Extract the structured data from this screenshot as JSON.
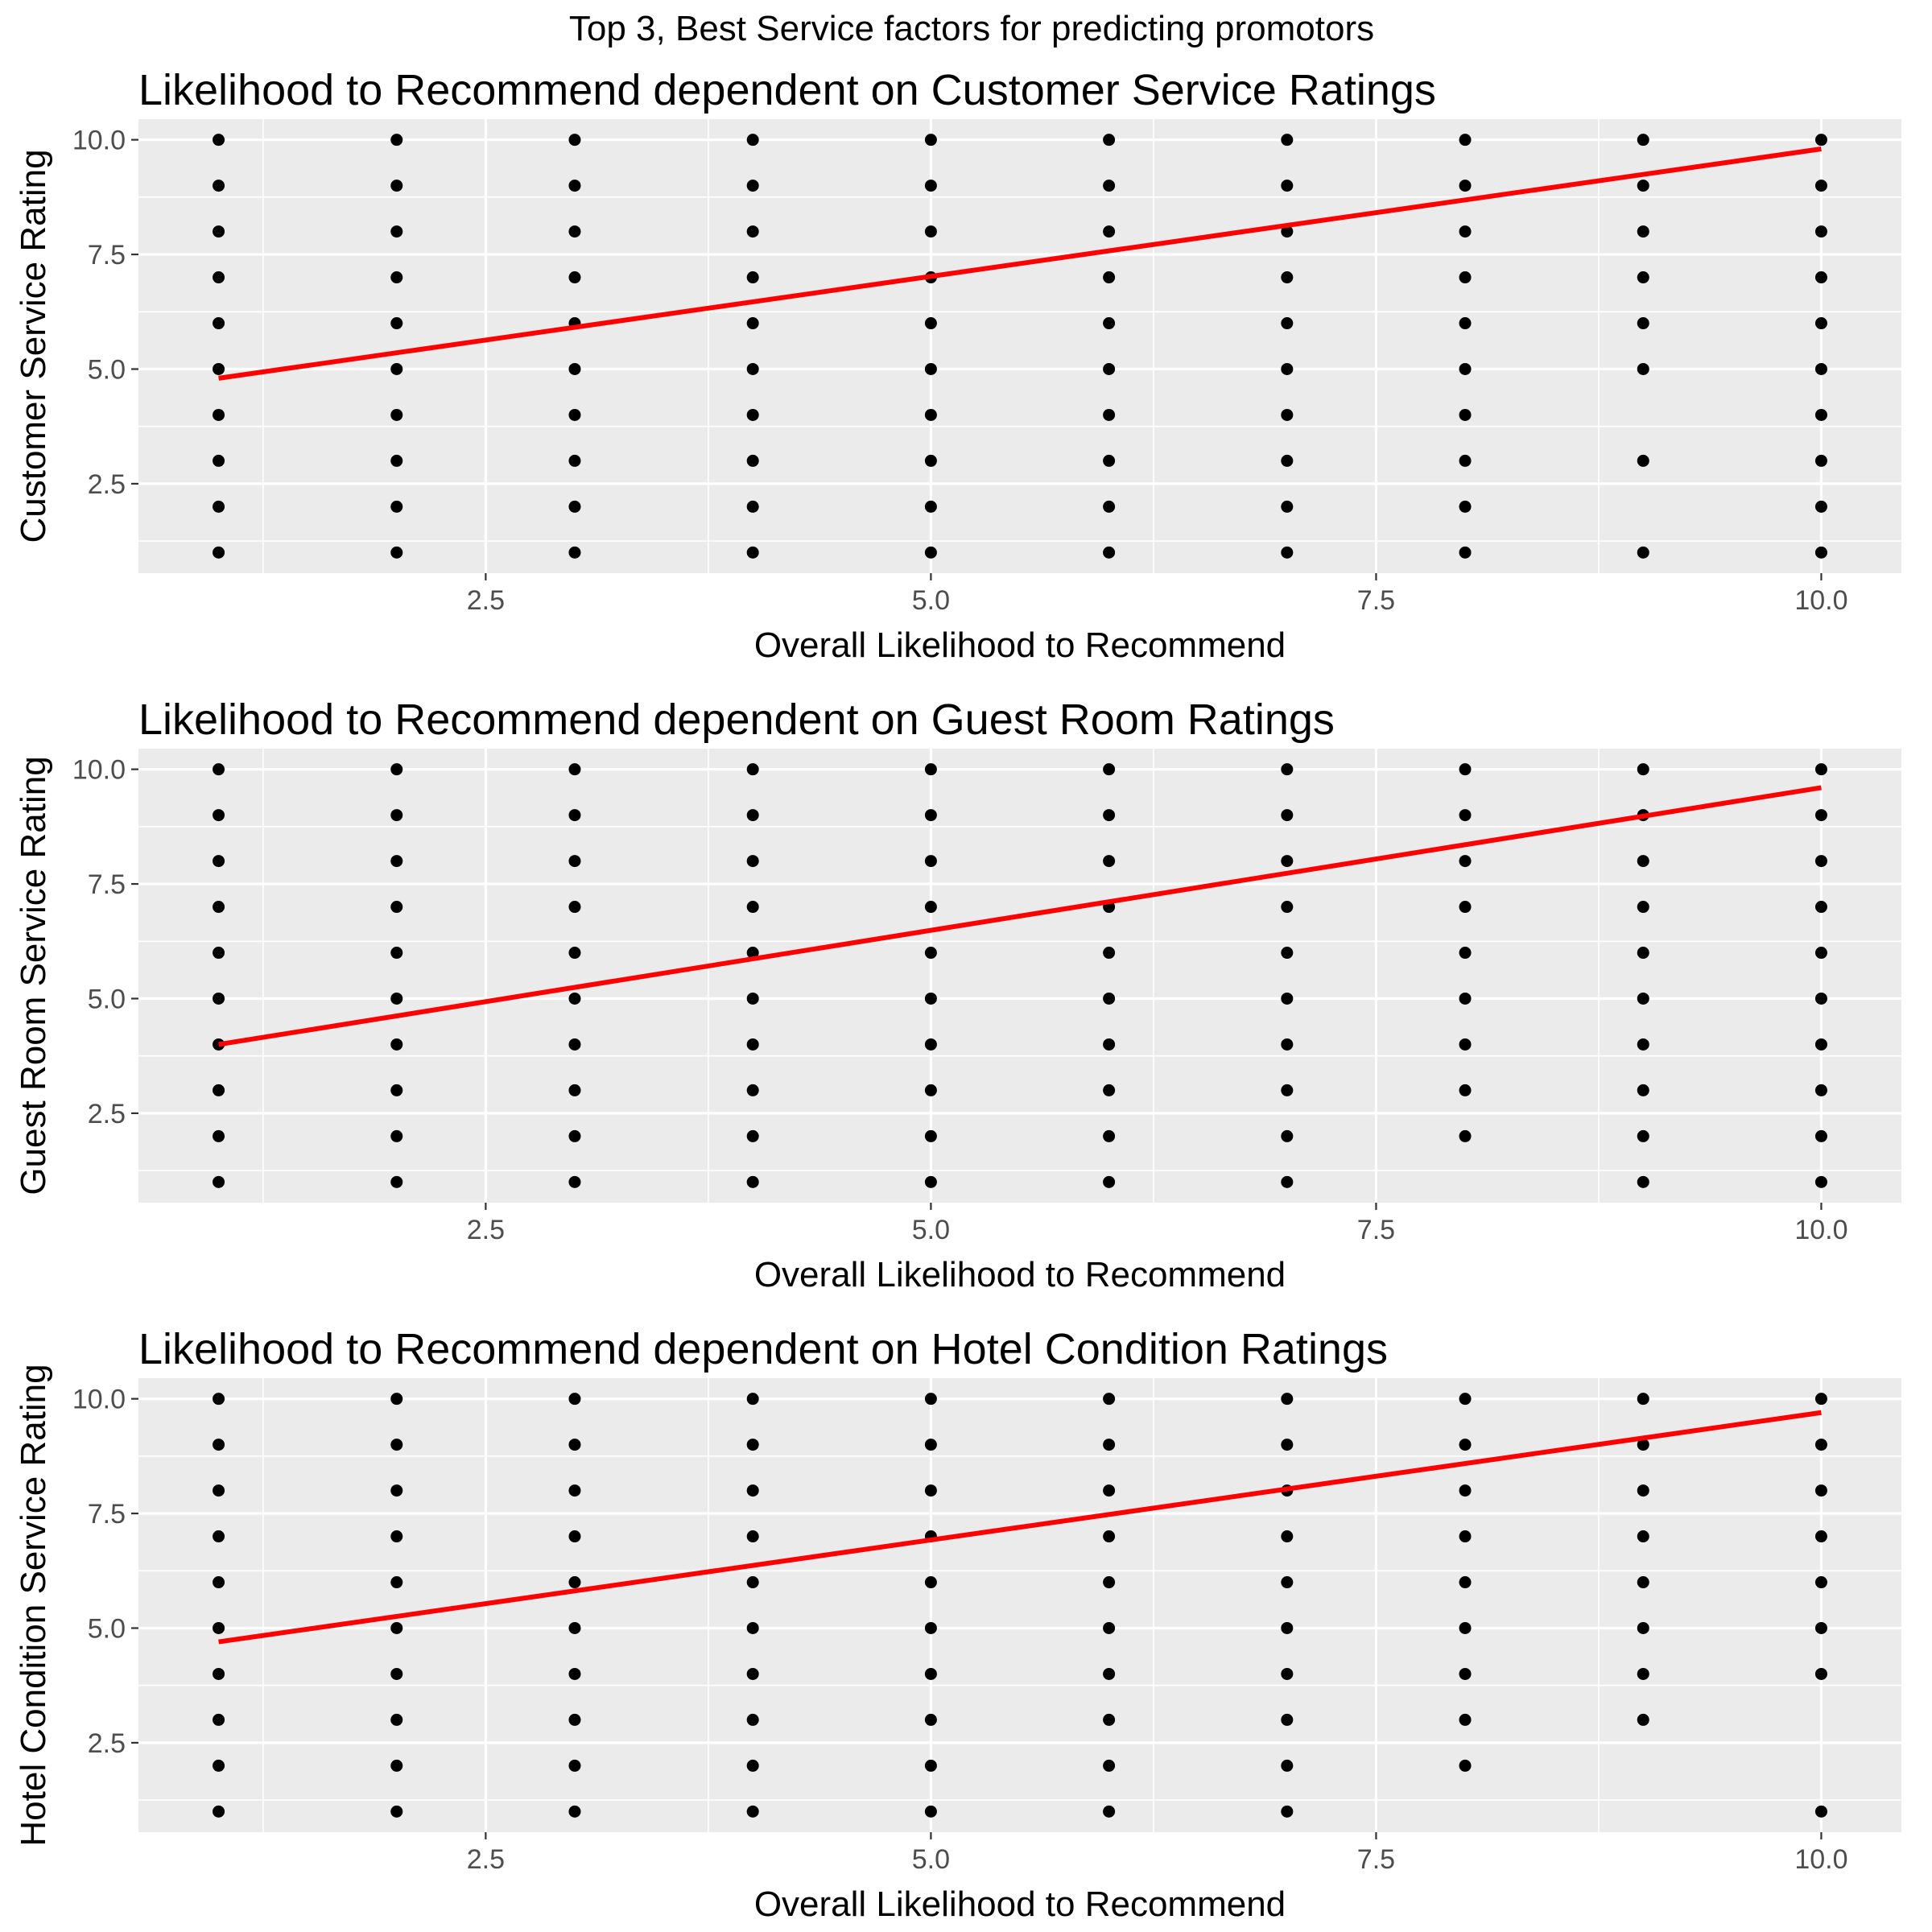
{
  "figure_title": "Top 3, Best Service factors for predicting promotors",
  "chart_data": [
    {
      "type": "scatter",
      "title": "Likelihood to Recommend dependent on Customer Service Ratings",
      "xlabel": "Overall Likelihood to Recommend",
      "ylabel": "Customer Service Rating",
      "xlim": [
        0.55,
        10.45
      ],
      "ylim": [
        0.55,
        10.45
      ],
      "xticks": [
        2.5,
        5.0,
        7.5,
        10.0
      ],
      "yticks": [
        2.5,
        5.0,
        7.5,
        10.0
      ],
      "xtick_labels": [
        "2.5",
        "5.0",
        "7.5",
        "10.0"
      ],
      "ytick_labels": [
        "2.5",
        "5.0",
        "7.5",
        "10.0"
      ],
      "grid": true,
      "point_color": "#000000",
      "line_color": "#ff0000",
      "points_by_x": [
        {
          "x": 1,
          "y": [
            1,
            2,
            3,
            4,
            5,
            6,
            7,
            8,
            9,
            10
          ]
        },
        {
          "x": 2,
          "y": [
            1,
            2,
            3,
            4,
            5,
            6,
            7,
            8,
            9,
            10
          ]
        },
        {
          "x": 3,
          "y": [
            1,
            2,
            3,
            4,
            5,
            6,
            7,
            8,
            9,
            10
          ]
        },
        {
          "x": 4,
          "y": [
            1,
            2,
            3,
            4,
            5,
            6,
            7,
            8,
            9,
            10
          ]
        },
        {
          "x": 5,
          "y": [
            1,
            2,
            3,
            4,
            5,
            6,
            7,
            8,
            9,
            10
          ]
        },
        {
          "x": 6,
          "y": [
            1,
            2,
            3,
            4,
            5,
            6,
            7,
            8,
            9,
            10
          ]
        },
        {
          "x": 7,
          "y": [
            1,
            2,
            3,
            4,
            5,
            6,
            7,
            8,
            9,
            10
          ]
        },
        {
          "x": 8,
          "y": [
            1,
            2,
            3,
            4,
            5,
            6,
            7,
            8,
            9,
            10
          ]
        },
        {
          "x": 9,
          "y": [
            1,
            3,
            5,
            6,
            7,
            8,
            9,
            10
          ]
        },
        {
          "x": 10,
          "y": [
            1,
            2,
            3,
            4,
            5,
            6,
            7,
            8,
            9,
            10
          ]
        }
      ],
      "trend_line": {
        "x": [
          1,
          10
        ],
        "y": [
          4.8,
          9.8
        ]
      }
    },
    {
      "type": "scatter",
      "title": "Likelihood to Recommend dependent on Guest Room Ratings",
      "xlabel": "Overall Likelihood to Recommend",
      "ylabel": "Guest Room Service Rating",
      "xlim": [
        0.55,
        10.45
      ],
      "ylim": [
        0.55,
        10.45
      ],
      "xticks": [
        2.5,
        5.0,
        7.5,
        10.0
      ],
      "yticks": [
        2.5,
        5.0,
        7.5,
        10.0
      ],
      "xtick_labels": [
        "2.5",
        "5.0",
        "7.5",
        "10.0"
      ],
      "ytick_labels": [
        "2.5",
        "5.0",
        "7.5",
        "10.0"
      ],
      "grid": true,
      "point_color": "#000000",
      "line_color": "#ff0000",
      "points_by_x": [
        {
          "x": 1,
          "y": [
            1,
            2,
            3,
            4,
            5,
            6,
            7,
            8,
            9,
            10
          ]
        },
        {
          "x": 2,
          "y": [
            1,
            2,
            3,
            4,
            5,
            6,
            7,
            8,
            9,
            10
          ]
        },
        {
          "x": 3,
          "y": [
            1,
            2,
            3,
            4,
            5,
            6,
            7,
            8,
            9,
            10
          ]
        },
        {
          "x": 4,
          "y": [
            1,
            2,
            3,
            4,
            5,
            6,
            7,
            8,
            9,
            10
          ]
        },
        {
          "x": 5,
          "y": [
            1,
            2,
            3,
            4,
            5,
            6,
            7,
            8,
            9,
            10
          ]
        },
        {
          "x": 6,
          "y": [
            1,
            2,
            3,
            4,
            5,
            6,
            7,
            8,
            9,
            10
          ]
        },
        {
          "x": 7,
          "y": [
            1,
            2,
            3,
            4,
            5,
            6,
            7,
            8,
            9,
            10
          ]
        },
        {
          "x": 8,
          "y": [
            2,
            3,
            4,
            5,
            6,
            7,
            8,
            9,
            10
          ]
        },
        {
          "x": 9,
          "y": [
            1,
            2,
            3,
            4,
            5,
            6,
            7,
            8,
            9,
            10
          ]
        },
        {
          "x": 10,
          "y": [
            1,
            2,
            3,
            4,
            5,
            6,
            7,
            8,
            9,
            10
          ]
        }
      ],
      "trend_line": {
        "x": [
          1,
          10
        ],
        "y": [
          4.0,
          9.6
        ]
      }
    },
    {
      "type": "scatter",
      "title": "Likelihood to Recommend dependent on Hotel Condition Ratings",
      "xlabel": "Overall Likelihood to Recommend",
      "ylabel": "Hotel Condition Service Rating",
      "xlim": [
        0.55,
        10.45
      ],
      "ylim": [
        0.55,
        10.45
      ],
      "xticks": [
        2.5,
        5.0,
        7.5,
        10.0
      ],
      "yticks": [
        2.5,
        5.0,
        7.5,
        10.0
      ],
      "xtick_labels": [
        "2.5",
        "5.0",
        "7.5",
        "10.0"
      ],
      "ytick_labels": [
        "2.5",
        "5.0",
        "7.5",
        "10.0"
      ],
      "grid": true,
      "point_color": "#000000",
      "line_color": "#ff0000",
      "points_by_x": [
        {
          "x": 1,
          "y": [
            1,
            2,
            3,
            4,
            5,
            6,
            7,
            8,
            9,
            10
          ]
        },
        {
          "x": 2,
          "y": [
            1,
            2,
            3,
            4,
            5,
            6,
            7,
            8,
            9,
            10
          ]
        },
        {
          "x": 3,
          "y": [
            1,
            2,
            3,
            4,
            5,
            6,
            7,
            8,
            9,
            10
          ]
        },
        {
          "x": 4,
          "y": [
            1,
            2,
            3,
            4,
            5,
            6,
            7,
            8,
            9,
            10
          ]
        },
        {
          "x": 5,
          "y": [
            1,
            2,
            3,
            4,
            5,
            6,
            7,
            8,
            9,
            10
          ]
        },
        {
          "x": 6,
          "y": [
            1,
            2,
            3,
            4,
            5,
            6,
            7,
            8,
            9,
            10
          ]
        },
        {
          "x": 7,
          "y": [
            1,
            2,
            3,
            4,
            5,
            6,
            7,
            8,
            9,
            10
          ]
        },
        {
          "x": 8,
          "y": [
            2,
            3,
            4,
            5,
            6,
            7,
            8,
            9,
            10
          ]
        },
        {
          "x": 9,
          "y": [
            3,
            4,
            5,
            6,
            7,
            8,
            9,
            10
          ]
        },
        {
          "x": 10,
          "y": [
            1,
            4,
            5,
            6,
            7,
            8,
            9,
            10
          ]
        }
      ],
      "trend_line": {
        "x": [
          1,
          10
        ],
        "y": [
          4.7,
          9.7
        ]
      }
    }
  ]
}
